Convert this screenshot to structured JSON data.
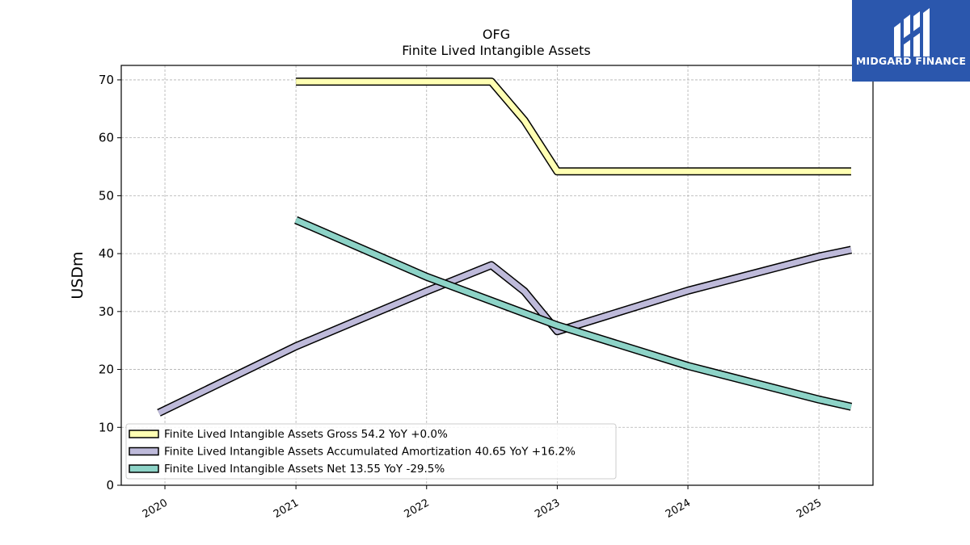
{
  "brand": {
    "name": "MIDGARD FINANCE",
    "bg_color": "#2b57ad"
  },
  "chart_data": {
    "type": "line",
    "title": "OFG",
    "subtitle": "Finite Lived Intangible Assets",
    "xlabel": "",
    "ylabel": "USDm",
    "xlim": [
      "2019-09-01",
      "2025-06-01"
    ],
    "ylim": [
      0,
      72.5
    ],
    "x_ticks": [
      "2020",
      "2021",
      "2022",
      "2023",
      "2024",
      "2025"
    ],
    "y_ticks": [
      "0",
      "10",
      "20",
      "30",
      "40",
      "50",
      "60",
      "70"
    ],
    "grid": true,
    "legend_position": "lower-left",
    "series": [
      {
        "name": "Finite Lived Intangible Assets Gross",
        "legend": "Finite Lived Intangible Assets Gross  54.2 YoY +0.0%",
        "color": "#ffffb3",
        "points": [
          [
            "2021-01-01",
            69.7
          ],
          [
            "2022-07-01",
            69.7
          ],
          [
            "2022-10-01",
            63.0
          ],
          [
            "2023-01-01",
            54.2
          ],
          [
            "2025-04-01",
            54.2
          ]
        ]
      },
      {
        "name": "Finite Lived Intangible Assets Accumulated Amortization",
        "legend": "Finite Lived Intangible Assets Accumulated Amortization  40.65 YoY +16.2%",
        "color": "#bebada",
        "points": [
          [
            "2019-12-15",
            12.5
          ],
          [
            "2021-01-01",
            24.0
          ],
          [
            "2022-01-01",
            33.5
          ],
          [
            "2022-07-01",
            38.0
          ],
          [
            "2022-10-01",
            33.5
          ],
          [
            "2023-01-01",
            26.6
          ],
          [
            "2024-01-01",
            33.6
          ],
          [
            "2025-01-01",
            39.5
          ],
          [
            "2025-04-01",
            40.65
          ]
        ]
      },
      {
        "name": "Finite Lived Intangible Assets Net",
        "legend": "Finite Lived Intangible Assets Net  13.55 YoY -29.5%",
        "color": "#8dd3c7",
        "points": [
          [
            "2021-01-01",
            45.8
          ],
          [
            "2022-01-01",
            36.0
          ],
          [
            "2023-01-01",
            27.6
          ],
          [
            "2024-01-01",
            20.6
          ],
          [
            "2025-01-01",
            14.8
          ],
          [
            "2025-04-01",
            13.55
          ]
        ]
      }
    ]
  }
}
